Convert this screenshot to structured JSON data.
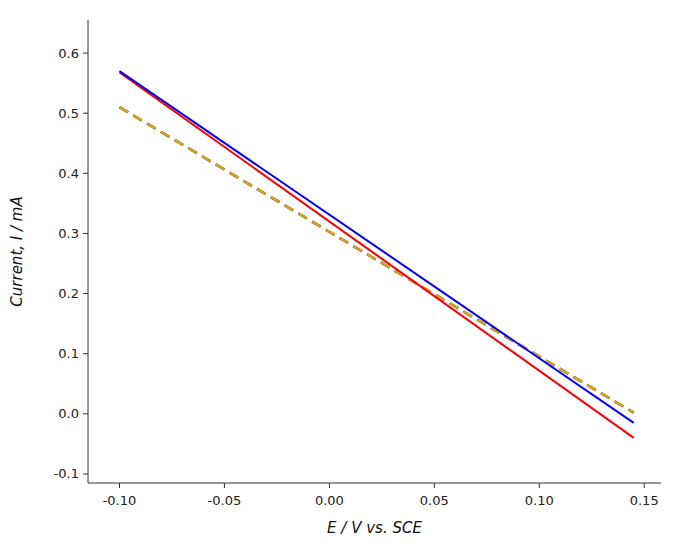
{
  "chart_data": {
    "type": "line",
    "xlabel": "E / V vs. SCE",
    "ylabel": "Current, I / mA",
    "x": [
      -0.1,
      0.145
    ],
    "series": [
      {
        "color": "#0000FF",
        "line_style": "solid",
        "values": [
          0.57,
          -0.015
        ]
      },
      {
        "color": "#FF0000",
        "line_style": "solid",
        "values": [
          0.568,
          -0.04
        ]
      },
      {
        "color": "#DAA520",
        "line_style": "dashed",
        "values": [
          0.51,
          0.002
        ]
      },
      {
        "color": "#000000",
        "line_style": "dashed",
        "values": [
          0.51,
          0.002
        ]
      }
    ],
    "xlim": [
      -0.115,
      0.158
    ],
    "ylim": [
      -0.115,
      0.655
    ],
    "xticks": [
      {
        "value": -0.1,
        "label": "-0.10"
      },
      {
        "value": -0.05,
        "label": "-0.05"
      },
      {
        "value": 0.0,
        "label": "0.00"
      },
      {
        "value": 0.05,
        "label": "0.05"
      },
      {
        "value": 0.1,
        "label": "0.10"
      },
      {
        "value": 0.15,
        "label": "0.15"
      }
    ],
    "yticks": [
      -0.1,
      {
        "value": 0.0,
        "label": "0.0"
      },
      0.1,
      0.2,
      0.3,
      0.4,
      0.5,
      0.6
    ],
    "grid": false
  }
}
